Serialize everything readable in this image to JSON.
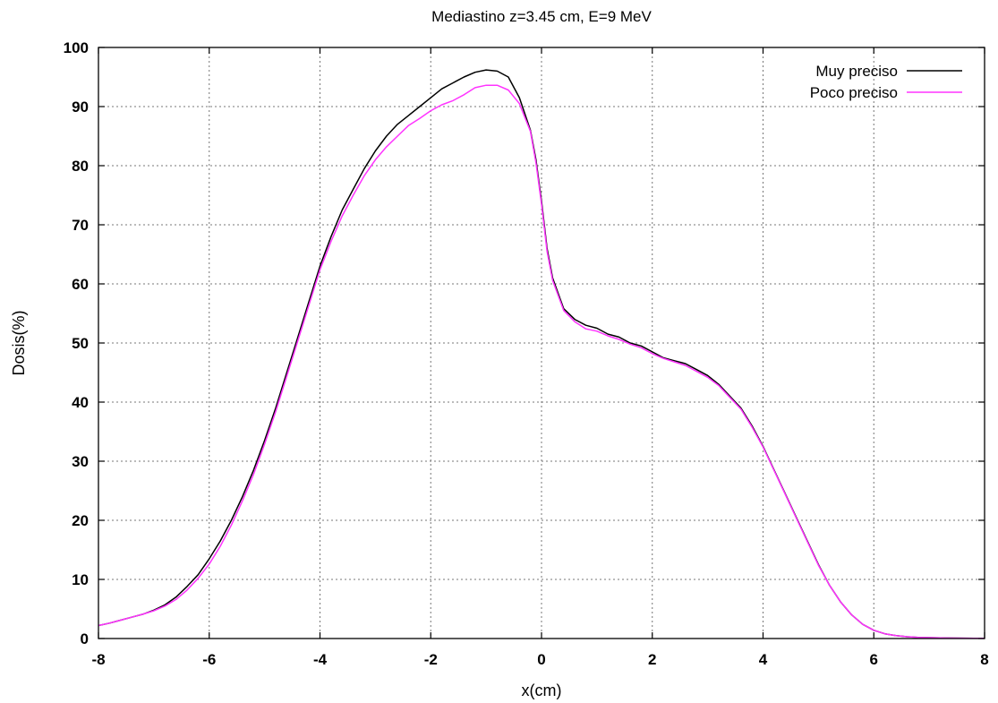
{
  "chart_data": {
    "type": "line",
    "title": "Mediastino z=3.45 cm, E=9 MeV",
    "xlabel": "x(cm)",
    "ylabel": "Dosis(%)",
    "xlim": [
      -8,
      8
    ],
    "ylim": [
      0,
      100
    ],
    "xticks": [
      "-8",
      "-6",
      "-4",
      "-2",
      "0",
      "2",
      "4",
      "6",
      "8"
    ],
    "yticks": [
      "0",
      "10",
      "20",
      "30",
      "40",
      "50",
      "60",
      "70",
      "80",
      "90",
      "100"
    ],
    "grid": true,
    "legend_position": "top-right",
    "x": [
      -8.0,
      -7.8,
      -7.6,
      -7.4,
      -7.2,
      -7.0,
      -6.8,
      -6.6,
      -6.4,
      -6.2,
      -6.0,
      -5.8,
      -5.6,
      -5.4,
      -5.2,
      -5.0,
      -4.8,
      -4.6,
      -4.4,
      -4.2,
      -4.0,
      -3.8,
      -3.6,
      -3.4,
      -3.2,
      -3.0,
      -2.8,
      -2.6,
      -2.4,
      -2.2,
      -2.0,
      -1.8,
      -1.6,
      -1.4,
      -1.2,
      -1.0,
      -0.8,
      -0.6,
      -0.4,
      -0.2,
      -0.1,
      0.0,
      0.1,
      0.2,
      0.4,
      0.6,
      0.8,
      1.0,
      1.2,
      1.4,
      1.6,
      1.8,
      2.0,
      2.2,
      2.4,
      2.6,
      2.8,
      3.0,
      3.2,
      3.4,
      3.6,
      3.8,
      4.0,
      4.2,
      4.4,
      4.6,
      4.8,
      5.0,
      5.2,
      5.4,
      5.6,
      5.8,
      6.0,
      6.2,
      6.4,
      6.6,
      6.8,
      7.0,
      7.2,
      7.4,
      7.6,
      7.8,
      8.0
    ],
    "series": [
      {
        "name": "Muy preciso",
        "color": "#000000",
        "values": [
          2.2,
          2.6,
          3.1,
          3.6,
          4.1,
          4.8,
          5.7,
          7.0,
          8.8,
          10.8,
          13.5,
          16.5,
          20.0,
          24.0,
          28.5,
          33.5,
          39.0,
          45.0,
          51.0,
          57.0,
          63.0,
          68.0,
          72.5,
          76.0,
          79.5,
          82.5,
          85.0,
          87.0,
          88.5,
          90.0,
          91.5,
          93.0,
          94.0,
          95.0,
          95.8,
          96.2,
          96.0,
          95.0,
          91.5,
          86.0,
          81.0,
          74.0,
          66.0,
          61.0,
          55.8,
          54.0,
          53.0,
          52.5,
          51.5,
          51.0,
          50.0,
          49.5,
          48.5,
          47.5,
          47.0,
          46.5,
          45.5,
          44.5,
          43.0,
          41.0,
          39.0,
          36.0,
          32.5,
          28.5,
          24.5,
          20.5,
          16.5,
          12.5,
          9.0,
          6.2,
          4.0,
          2.4,
          1.4,
          0.8,
          0.5,
          0.3,
          0.2,
          0.15,
          0.1,
          0.08,
          0.06,
          0.05,
          0.05
        ]
      },
      {
        "name": "Poco preciso",
        "color": "#ff33ff",
        "values": [
          2.2,
          2.6,
          3.1,
          3.6,
          4.1,
          4.7,
          5.5,
          6.6,
          8.2,
          10.2,
          12.6,
          15.6,
          19.2,
          23.3,
          27.8,
          32.9,
          38.4,
          44.4,
          50.4,
          56.4,
          62.4,
          67.2,
          71.5,
          75.0,
          78.3,
          81.0,
          83.2,
          85.0,
          86.8,
          88.0,
          89.3,
          90.3,
          91.0,
          92.0,
          93.2,
          93.6,
          93.6,
          92.8,
          90.5,
          85.8,
          80.5,
          73.5,
          65.5,
          60.6,
          55.5,
          53.6,
          52.4,
          52.0,
          51.2,
          50.6,
          49.8,
          49.2,
          48.2,
          47.4,
          46.8,
          46.2,
          45.2,
          44.2,
          42.8,
          40.8,
          38.8,
          35.8,
          32.4,
          28.4,
          24.4,
          20.4,
          16.4,
          12.4,
          9.0,
          6.2,
          4.0,
          2.4,
          1.4,
          0.8,
          0.5,
          0.3,
          0.2,
          0.15,
          0.1,
          0.08,
          0.06,
          0.05,
          0.05
        ]
      }
    ]
  }
}
